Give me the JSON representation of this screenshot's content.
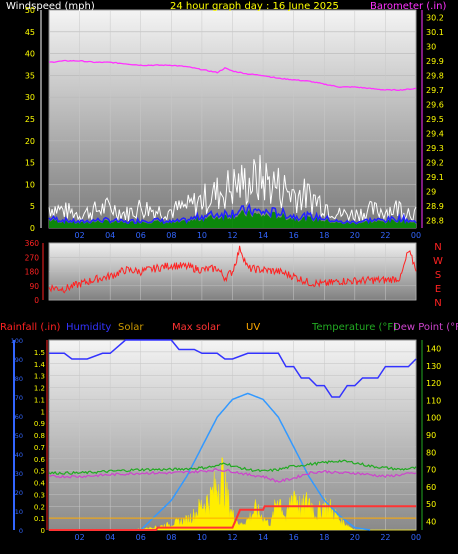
{
  "colors": {
    "windspeed": "#ffffff",
    "gust": "#ffffff",
    "wind_avg": "#2222ff",
    "wind_fill": "#008800",
    "barometer": "#ff33ff",
    "direction": "#ff2222",
    "rain_axis": "#ff2222",
    "humidity": "#3333ff",
    "solar": "#ffee00",
    "max_solar": "#ff3333",
    "uv": "#ffaa00",
    "temperature": "#22aa22",
    "dew_point": "#cc44cc",
    "max_solar_curve": "#3399ff",
    "tick_yellow": "#ffff00",
    "tick_red": "#ff2222",
    "tick_green": "#22cc22",
    "tick_blue": "#3366ff"
  },
  "chart_data": [
    {
      "type": "area",
      "title": "24 hour graph day : 16 June 2025",
      "left_label": "Windspeed (mph)",
      "right_label": "Barometer (.in)",
      "y_left_ticks": [
        "50",
        "45",
        "40",
        "35",
        "30",
        "25",
        "20",
        "15",
        "10",
        "5",
        "0"
      ],
      "y_right_ticks": [
        "30.2",
        "30.1",
        "30",
        "29.9",
        "29.8",
        "29.7",
        "29.6",
        "29.5",
        "29.4",
        "29.3",
        "29.2",
        "29.1",
        "29",
        "28.9",
        "28.8"
      ],
      "x_ticks": [
        "02",
        "04",
        "06",
        "08",
        "10",
        "12",
        "14",
        "16",
        "18",
        "20",
        "22",
        "00"
      ],
      "xlim": [
        0,
        24
      ],
      "ylim_left": [
        0,
        50
      ],
      "ylim_right": [
        28.75,
        30.25
      ],
      "series": [
        {
          "name": "Barometer (.in)",
          "x": [
            0,
            1,
            2,
            3,
            4,
            5,
            6,
            7,
            8,
            9,
            10,
            11,
            11.5,
            12,
            13,
            14,
            15,
            16,
            17,
            18,
            19,
            20,
            21,
            22,
            23,
            24
          ],
          "y": [
            29.89,
            29.9,
            29.9,
            29.89,
            29.89,
            29.88,
            29.87,
            29.87,
            29.87,
            29.86,
            29.84,
            29.82,
            29.85,
            29.83,
            29.81,
            29.8,
            29.78,
            29.77,
            29.76,
            29.74,
            29.72,
            29.72,
            29.71,
            29.7,
            29.7,
            29.71
          ]
        },
        {
          "name": "Windspeed (mph)",
          "x": [
            0,
            1,
            2,
            3,
            4,
            5,
            6,
            7,
            8,
            9,
            10,
            11,
            12,
            13,
            14,
            15,
            16,
            17,
            18,
            19,
            20,
            21,
            22,
            23,
            24
          ],
          "y": [
            2.5,
            2,
            1.5,
            2,
            2,
            1.5,
            2,
            2,
            1.5,
            2,
            3,
            3.5,
            4,
            4.5,
            4,
            4,
            3,
            3,
            2.5,
            1.5,
            1.5,
            2,
            2,
            2.5,
            1.5
          ]
        },
        {
          "name": "Gust (mph)",
          "x": [
            0,
            1,
            2,
            3,
            4,
            5,
            6,
            7,
            8,
            9,
            10,
            11,
            12,
            13,
            14,
            15,
            16,
            17,
            18,
            19,
            20,
            21,
            22,
            23,
            24
          ],
          "y": [
            6,
            5,
            4,
            5,
            6,
            4,
            6,
            5,
            5,
            6,
            8,
            10,
            12,
            13,
            14,
            12,
            10,
            9,
            7,
            4,
            4,
            5,
            5,
            6,
            4
          ]
        }
      ]
    },
    {
      "type": "line",
      "left_ticks": [
        "360",
        "270",
        "180",
        "90",
        "0"
      ],
      "right_labels": [
        "N",
        "W",
        "S",
        "E",
        "N"
      ],
      "xlim": [
        0,
        24
      ],
      "ylim": [
        0,
        360
      ],
      "series": [
        {
          "name": "Wind direction",
          "x": [
            0,
            1,
            2,
            3,
            4,
            5,
            6,
            7,
            8,
            9,
            10,
            11,
            11.5,
            12,
            12.5,
            13,
            14,
            15,
            16,
            17,
            18,
            19,
            20,
            21,
            22,
            23,
            23.5,
            24
          ],
          "y": [
            80,
            70,
            100,
            130,
            150,
            190,
            180,
            200,
            220,
            210,
            190,
            200,
            140,
            180,
            330,
            200,
            190,
            180,
            150,
            110,
            100,
            120,
            120,
            125,
            125,
            140,
            310,
            200
          ]
        }
      ]
    },
    {
      "type": "line",
      "legend": [
        "Rainfall (.in)",
        "Humidity",
        "Solar",
        "Max solar",
        "UV",
        "Temperature (°F)",
        "Dew Point (°F)"
      ],
      "rain_ticks": [
        "1.5",
        "1.4",
        "1.3",
        "1.2",
        "1.1",
        "1",
        "0.9",
        "0.8",
        "0.7",
        "0.6",
        "0.5",
        "0.4",
        "0.3",
        "0.2",
        "0.1",
        "0"
      ],
      "humidity_ticks": [
        "100",
        "90",
        "80",
        "70",
        "60",
        "50",
        "40",
        "30",
        "20",
        "10",
        "0"
      ],
      "temp_ticks": [
        "140",
        "130",
        "120",
        "110",
        "100",
        "90",
        "80",
        "70",
        "60",
        "50",
        "40"
      ],
      "x_ticks": [
        "02",
        "04",
        "06",
        "08",
        "10",
        "12",
        "14",
        "16",
        "18",
        "20",
        "22",
        "00"
      ],
      "xlim": [
        0,
        24
      ],
      "ylim_rain": [
        0,
        1.6
      ],
      "ylim_humidity": [
        0,
        100
      ],
      "ylim_temp": [
        35,
        145
      ],
      "series": [
        {
          "name": "Humidity",
          "x": [
            0,
            1,
            1.5,
            2.5,
            3.5,
            4,
            5,
            5.5,
            6.5,
            7,
            8,
            8.5,
            9.5,
            10,
            10.5,
            11,
            11.5,
            12,
            13,
            14,
            15,
            15.5,
            16,
            16.5,
            17,
            17.5,
            18,
            18.5,
            19,
            19.5,
            20,
            20.5,
            21.5,
            22,
            23,
            23.5,
            24
          ],
          "y": [
            93,
            93,
            90,
            90,
            93,
            93,
            100,
            100,
            100,
            100,
            100,
            95,
            95,
            93,
            93,
            93,
            90,
            90,
            93,
            93,
            93,
            86,
            86,
            80,
            80,
            76,
            76,
            70,
            70,
            76,
            76,
            80,
            80,
            86,
            86,
            86,
            90
          ]
        },
        {
          "name": "Solar",
          "x": [
            0,
            5,
            6,
            7,
            8,
            9,
            9.5,
            10,
            10.5,
            11,
            11.3,
            11.6,
            12,
            12.5,
            13,
            13.5,
            14,
            14.5,
            15,
            15.5,
            16,
            16.5,
            17,
            17.5,
            18,
            18.5,
            19,
            19.5,
            20,
            24
          ],
          "y": [
            0,
            0,
            0.01,
            0.03,
            0.06,
            0.1,
            0.15,
            0.25,
            0.3,
            0.45,
            0.55,
            0.35,
            0.15,
            0.05,
            0.1,
            0.2,
            0.12,
            0.05,
            0.35,
            0.1,
            0.4,
            0.2,
            0.3,
            0.15,
            0.25,
            0.2,
            0.1,
            0.05,
            0,
            0
          ]
        },
        {
          "name": "Max solar",
          "x": [
            6,
            8,
            9,
            10,
            11,
            12,
            13,
            14,
            15,
            16,
            17,
            18,
            19,
            20,
            21
          ],
          "y": [
            0,
            0.25,
            0.45,
            0.7,
            0.95,
            1.1,
            1.15,
            1.1,
            0.95,
            0.7,
            0.45,
            0.25,
            0.12,
            0.02,
            0
          ]
        },
        {
          "name": "Rainfall (.in)",
          "x": [
            0,
            7,
            7.1,
            12,
            12.5,
            14,
            14.1,
            24
          ],
          "y": [
            0,
            0,
            0.02,
            0.02,
            0.17,
            0.17,
            0.2,
            0.2
          ]
        },
        {
          "name": "UV",
          "x": [
            0,
            24
          ],
          "y": [
            0.1,
            0.1
          ]
        },
        {
          "name": "Temperature (°F)",
          "x": [
            0,
            2,
            4,
            6,
            8,
            10,
            11,
            11.5,
            12,
            13,
            14,
            15,
            16,
            17,
            18,
            19,
            20,
            21,
            22,
            23,
            24
          ],
          "y": [
            68,
            68,
            69,
            70,
            70,
            71,
            72,
            74,
            72,
            70,
            69,
            70,
            72,
            73,
            74,
            75,
            74,
            72,
            71,
            70,
            71
          ]
        },
        {
          "name": "Dew Point (°F)",
          "x": [
            0,
            2,
            4,
            6,
            8,
            10,
            11,
            12,
            13,
            14,
            15,
            16,
            17,
            18,
            19,
            20,
            21,
            22,
            23,
            24
          ],
          "y": [
            66,
            66,
            67,
            68,
            68,
            69,
            70,
            69,
            67,
            66,
            63,
            65,
            68,
            69,
            68,
            68,
            67,
            66,
            67,
            68
          ]
        }
      ]
    }
  ]
}
